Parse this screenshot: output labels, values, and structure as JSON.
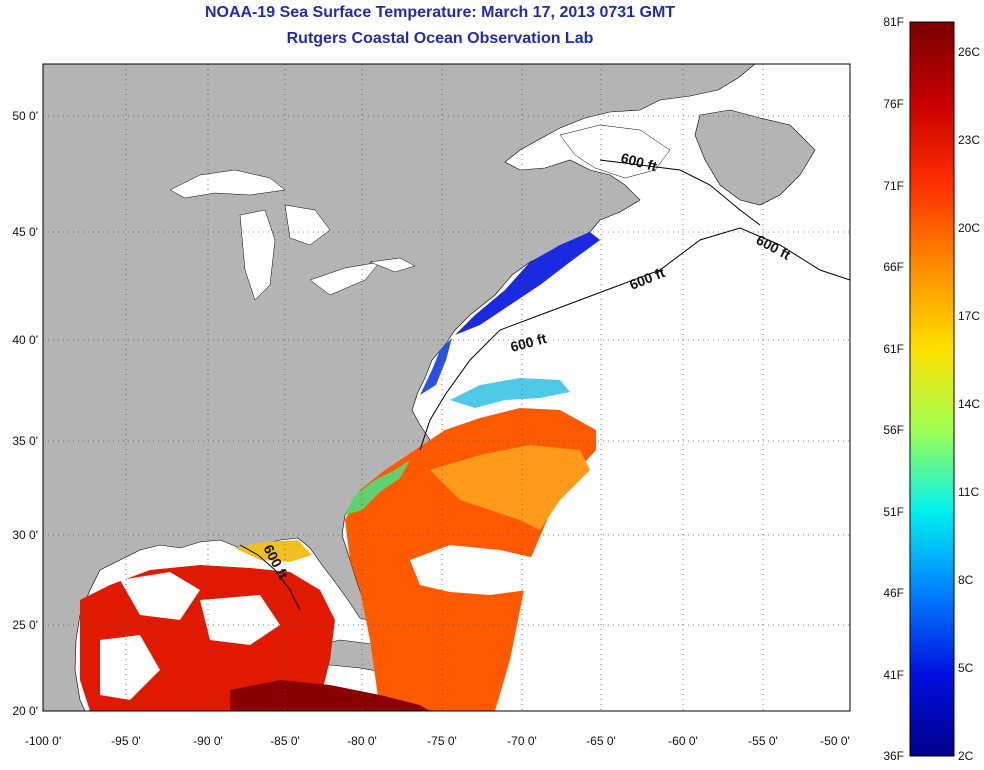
{
  "title": "NOAA-19 Sea Surface Temperature:  March 17, 2013 0731 GMT",
  "subtitle": "Rutgers Coastal Ocean Observation Lab",
  "colors": {
    "land": "#b4b4b4",
    "water_nodata": "#ffffff",
    "title": "#1f2bb0"
  },
  "x_ticks": [
    "-100 0'",
    "-95 0'",
    "-90 0'",
    "-85 0'",
    "-80 0'",
    "-75 0'",
    "-70 0'",
    "-65 0'",
    "-60 0'",
    "-55 0'",
    "-50 0'"
  ],
  "y_ticks": [
    "50 0'",
    "45 0'",
    "40 0'",
    "35 0'",
    "30 0'",
    "25 0'",
    "20 0'"
  ],
  "contour_labels": [
    "600 ft",
    "600 ft",
    "600 ft",
    "600 ft",
    "600 ft"
  ],
  "colorbar": {
    "fahrenheit_labels": [
      "81F",
      "76F",
      "71F",
      "66F",
      "61F",
      "56F",
      "51F",
      "46F",
      "41F",
      "36F"
    ],
    "celsius_labels": [
      "26C",
      "23C",
      "20C",
      "17C",
      "14C",
      "11C",
      "8C",
      "5C",
      "2C"
    ],
    "stops": [
      "#7a0000",
      "#c80000",
      "#ff3000",
      "#ff8c00",
      "#ffe000",
      "#a0ff50",
      "#00f0f0",
      "#0080ff",
      "#0010e0",
      "#00008c"
    ]
  }
}
